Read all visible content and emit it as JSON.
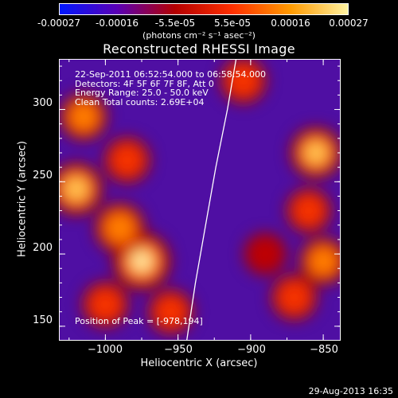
{
  "colorbar": {
    "tick_labels": [
      "-0.00027",
      "-0.00016",
      "-5.5e-05",
      "5.5e-05",
      "0.00016",
      "0.00027"
    ],
    "units_label": "(photons cm⁻² s⁻¹ asec⁻²)",
    "range": [
      -0.00027,
      0.00027
    ],
    "colors": [
      "#0018ff",
      "#5a00b4",
      "#b40000",
      "#ff3000",
      "#ff9a00",
      "#fff2a0"
    ]
  },
  "chart_data": {
    "type": "heatmap",
    "title": "Reconstructed RHESSI Image",
    "xlabel": "Heliocentric X (arcsec)",
    "ylabel": "Heliocentric Y (arcsec)",
    "xlim": [
      -1032,
      -838
    ],
    "ylim": [
      140,
      335
    ],
    "x_ticks": [
      {
        "value": -1000,
        "label": "−1000"
      },
      {
        "value": -950,
        "label": "−950"
      },
      {
        "value": -900,
        "label": "−900"
      },
      {
        "value": -850,
        "label": "−850"
      }
    ],
    "y_ticks": [
      {
        "value": 150,
        "label": "150"
      },
      {
        "value": 200,
        "label": "200"
      },
      {
        "value": 250,
        "label": "250"
      },
      {
        "value": 300,
        "label": "300"
      }
    ],
    "limb_curve": [
      [
        -944,
        140
      ],
      [
        -938,
        180
      ],
      [
        -931,
        220
      ],
      [
        -924,
        260
      ],
      [
        -916,
        300
      ],
      [
        -910,
        335
      ]
    ],
    "hot_spots": [
      {
        "x": -975,
        "y": 195,
        "intensity": 1.0
      },
      {
        "x": -990,
        "y": 218,
        "intensity": 0.7
      },
      {
        "x": -1020,
        "y": 245,
        "intensity": 0.8
      },
      {
        "x": -985,
        "y": 265,
        "intensity": 0.55
      },
      {
        "x": -1015,
        "y": 295,
        "intensity": 0.6
      },
      {
        "x": -1000,
        "y": 165,
        "intensity": 0.55
      },
      {
        "x": -955,
        "y": 160,
        "intensity": 0.5
      },
      {
        "x": -855,
        "y": 270,
        "intensity": 0.75
      },
      {
        "x": -860,
        "y": 230,
        "intensity": 0.5
      },
      {
        "x": -850,
        "y": 195,
        "intensity": 0.6
      },
      {
        "x": -870,
        "y": 170,
        "intensity": 0.55
      },
      {
        "x": -905,
        "y": 320,
        "intensity": 0.55
      },
      {
        "x": -890,
        "y": 200,
        "intensity": 0.4
      }
    ],
    "annotations": {
      "time_range": "22-Sep-2011 06:52:54.000 to 06:58:54.000",
      "detectors": "Detectors: 4F 5F 6F 7F 8F, Att 0",
      "energy": "Energy Range: 25.0 - 50.0 keV",
      "clean": "Clean     Total counts: 2.69E+04",
      "peak": "Position of Peak = [-978,194]"
    }
  },
  "footer": {
    "timestamp": "29-Aug-2013 16:35"
  }
}
